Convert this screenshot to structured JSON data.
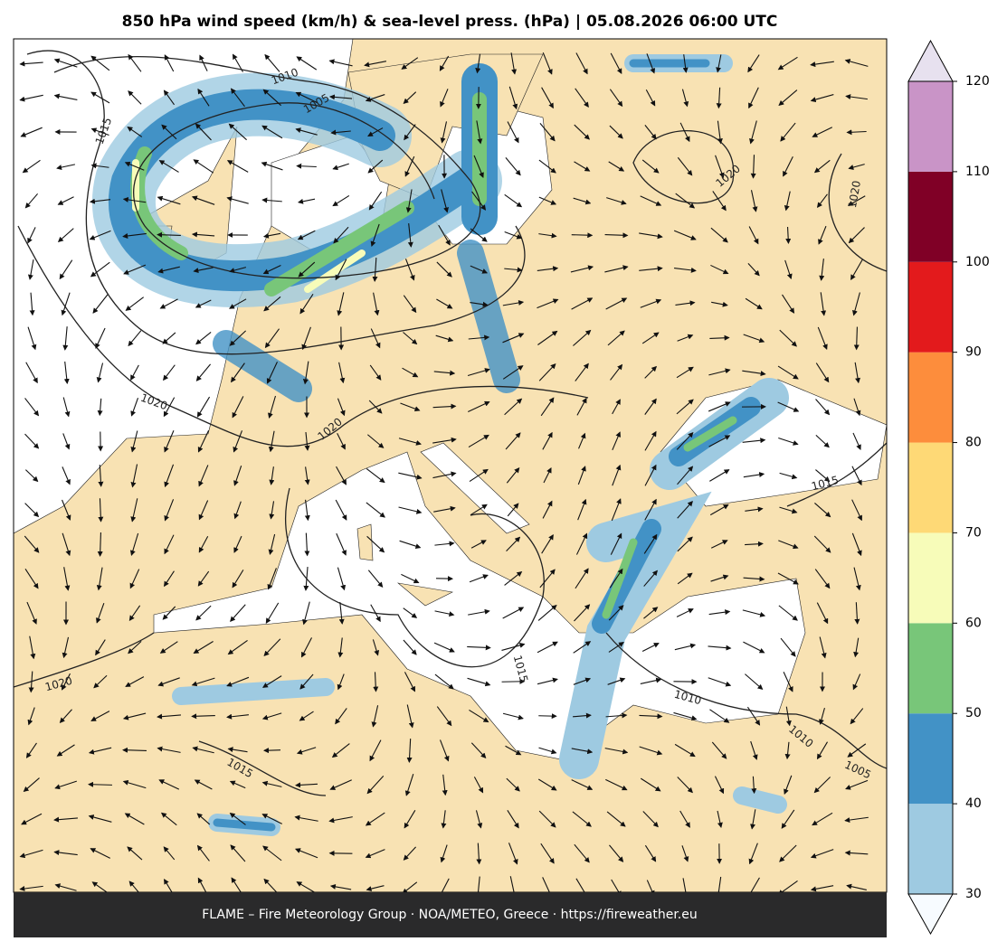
{
  "title": "850 hPa wind speed (km/h) & sea-level press. (hPa)  |  05.08.2026 06:00 UTC",
  "footer": "FLAME – Fire Meteorology Group · NOA/METEO, Greece · https://fireweather.eu",
  "colorbar": {
    "ticks": [
      30,
      40,
      50,
      60,
      70,
      80,
      90,
      100,
      110,
      120
    ],
    "colors": [
      "#9ecae1",
      "#4292c6",
      "#78c679",
      "#f7fcb9",
      "#fed976",
      "#fd8d3c",
      "#e31a1c",
      "#800026",
      "#c994c7"
    ],
    "under_color": "#f7fbff",
    "over_color": "#e7e1ef"
  },
  "contour_labels": [
    1010,
    1005,
    1015,
    1020,
    1020,
    1020,
    1020,
    1015,
    1015,
    1010,
    1020,
    1015,
    1010,
    1005
  ]
}
